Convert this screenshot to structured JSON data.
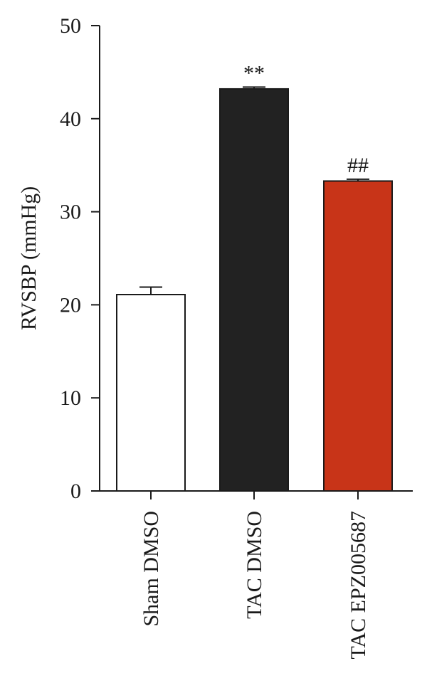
{
  "chart_data": {
    "type": "bar",
    "title": "",
    "xlabel": "",
    "ylabel": "RVSBP (mmHg)",
    "ylim": [
      0,
      50
    ],
    "yticks": [
      0,
      10,
      20,
      30,
      40,
      50
    ],
    "yticks_labels": [
      "0",
      "10",
      "20",
      "30",
      "40",
      "50"
    ],
    "categories": [
      "Sham DMSO",
      "TAC DMSO",
      "TAC EPZ005687"
    ],
    "values": [
      21.1,
      43.2,
      33.3
    ],
    "errors": [
      0.8,
      0.2,
      0.2
    ],
    "significance": [
      "",
      "**",
      "##"
    ],
    "colors": [
      "#ffffff",
      "#222222",
      "#c83418"
    ],
    "grid": false,
    "legend": "none"
  }
}
